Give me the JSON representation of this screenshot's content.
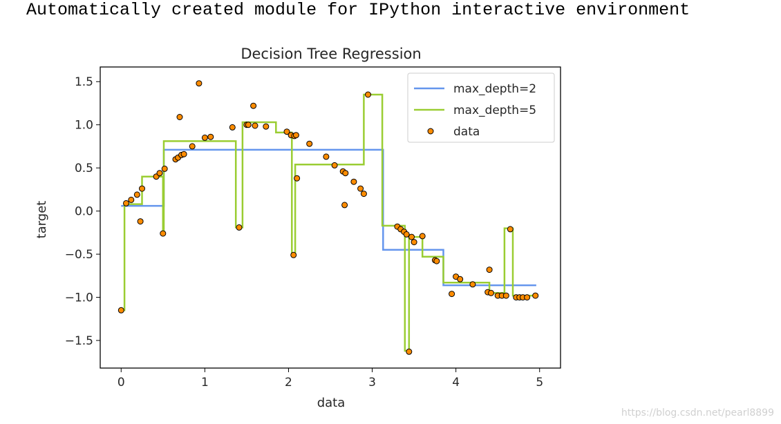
{
  "output_text": "Automatically created module for IPython interactive environment",
  "watermark": "https://blog.csdn.net/pearl8899",
  "chart_data": {
    "type": "line",
    "title": "Decision Tree Regression",
    "xlabel": "data",
    "ylabel": "target",
    "xlim": [
      -0.25,
      5.25
    ],
    "ylim": [
      -1.82,
      1.67
    ],
    "xticks": [
      0,
      1,
      2,
      3,
      4,
      5
    ],
    "xtick_labels": [
      "0",
      "1",
      "2",
      "3",
      "4",
      "5"
    ],
    "yticks": [
      -1.5,
      -1.0,
      -0.5,
      0.0,
      0.5,
      1.0,
      1.5
    ],
    "ytick_labels": [
      "−1.5",
      "−1.0",
      "−0.5",
      "0.0",
      "0.5",
      "1.0",
      "1.5"
    ],
    "grid": false,
    "legend_position": "upper-right",
    "series": [
      {
        "name": "max_depth=2",
        "type": "step",
        "color": "#6495ed",
        "x": [
          0.0,
          0.51,
          0.51,
          3.13,
          3.13,
          3.85,
          3.85,
          4.96
        ],
        "y": [
          0.06,
          0.06,
          0.71,
          0.71,
          -0.45,
          -0.45,
          -0.86,
          -0.86
        ]
      },
      {
        "name": "max_depth=5",
        "type": "step",
        "color": "#9acd32",
        "x": [
          0.0,
          0.04,
          0.04,
          0.25,
          0.25,
          0.5,
          0.5,
          0.51,
          0.51,
          1.37,
          1.37,
          1.45,
          1.45,
          1.85,
          1.85,
          2.04,
          2.04,
          2.08,
          2.08,
          2.9,
          2.9,
          3.12,
          3.12,
          3.39,
          3.39,
          3.44,
          3.44,
          3.6,
          3.6,
          3.85,
          3.85,
          4.4,
          4.4,
          4.58,
          4.58,
          4.68,
          4.68,
          4.96
        ],
        "y": [
          -1.15,
          -1.15,
          0.08,
          0.08,
          0.4,
          0.4,
          -0.27,
          -0.27,
          0.81,
          0.81,
          -0.19,
          -0.19,
          1.03,
          1.03,
          0.91,
          0.91,
          -0.5,
          -0.5,
          0.54,
          0.54,
          1.35,
          1.35,
          -0.17,
          -0.17,
          -1.62,
          -1.62,
          -0.3,
          -0.3,
          -0.53,
          -0.53,
          -0.83,
          -0.83,
          -0.95,
          -0.95,
          -0.2,
          -0.2,
          -0.98,
          -0.98
        ]
      },
      {
        "name": "data",
        "type": "scatter",
        "color": "#ff8c00",
        "edgecolor": "#000000",
        "points": [
          [
            0.0,
            -1.15
          ],
          [
            0.06,
            0.09
          ],
          [
            0.12,
            0.13
          ],
          [
            0.19,
            0.19
          ],
          [
            0.23,
            -0.12
          ],
          [
            0.25,
            0.26
          ],
          [
            0.42,
            0.4
          ],
          [
            0.46,
            0.44
          ],
          [
            0.5,
            -0.26
          ],
          [
            0.52,
            0.49
          ],
          [
            0.65,
            0.6
          ],
          [
            0.68,
            0.62
          ],
          [
            0.7,
            1.09
          ],
          [
            0.72,
            0.65
          ],
          [
            0.75,
            0.66
          ],
          [
            0.85,
            0.75
          ],
          [
            0.93,
            1.48
          ],
          [
            1.0,
            0.85
          ],
          [
            1.07,
            0.86
          ],
          [
            1.33,
            0.97
          ],
          [
            1.41,
            -0.19
          ],
          [
            1.5,
            1.0
          ],
          [
            1.52,
            1.0
          ],
          [
            1.58,
            1.22
          ],
          [
            1.6,
            0.99
          ],
          [
            1.73,
            0.98
          ],
          [
            1.98,
            0.92
          ],
          [
            2.03,
            0.88
          ],
          [
            2.06,
            -0.51
          ],
          [
            2.07,
            0.87
          ],
          [
            2.09,
            0.88
          ],
          [
            2.1,
            0.38
          ],
          [
            2.25,
            0.78
          ],
          [
            2.45,
            0.63
          ],
          [
            2.55,
            0.53
          ],
          [
            2.65,
            0.46
          ],
          [
            2.67,
            0.07
          ],
          [
            2.68,
            0.44
          ],
          [
            2.78,
            0.34
          ],
          [
            2.86,
            0.26
          ],
          [
            2.9,
            0.2
          ],
          [
            2.95,
            1.35
          ],
          [
            3.3,
            -0.18
          ],
          [
            3.34,
            -0.21
          ],
          [
            3.38,
            -0.24
          ],
          [
            3.41,
            -0.27
          ],
          [
            3.44,
            -1.63
          ],
          [
            3.47,
            -0.3
          ],
          [
            3.5,
            -0.36
          ],
          [
            3.6,
            -0.29
          ],
          [
            3.75,
            -0.57
          ],
          [
            3.77,
            -0.58
          ],
          [
            3.95,
            -0.96
          ],
          [
            4.0,
            -0.76
          ],
          [
            4.05,
            -0.79
          ],
          [
            4.2,
            -0.85
          ],
          [
            4.38,
            -0.94
          ],
          [
            4.4,
            -0.68
          ],
          [
            4.42,
            -0.95
          ],
          [
            4.5,
            -0.98
          ],
          [
            4.55,
            -0.98
          ],
          [
            4.6,
            -0.98
          ],
          [
            4.65,
            -0.21
          ],
          [
            4.72,
            -1.0
          ],
          [
            4.76,
            -1.0
          ],
          [
            4.8,
            -1.0
          ],
          [
            4.85,
            -1.0
          ],
          [
            4.95,
            -0.98
          ]
        ]
      }
    ]
  }
}
